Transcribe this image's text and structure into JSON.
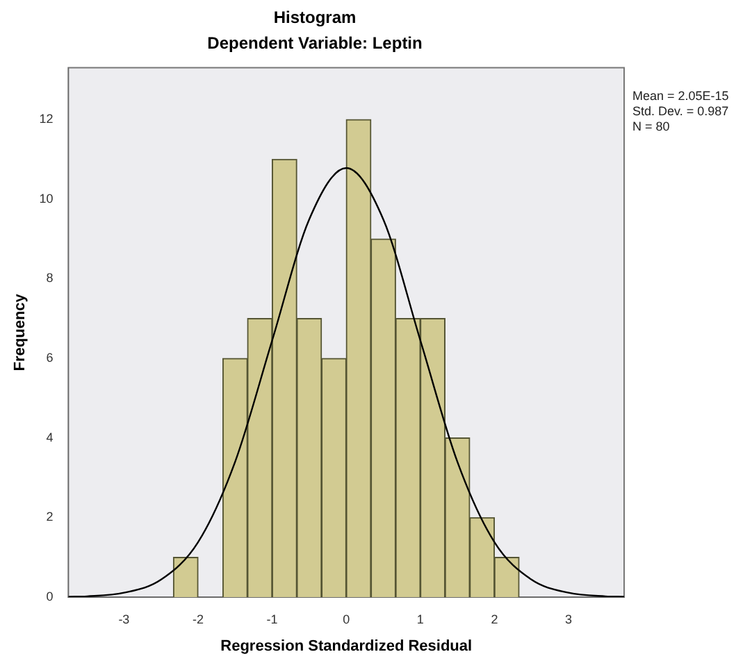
{
  "chart_data": {
    "type": "histogram",
    "title": "Histogram",
    "subtitle": "Dependent Variable: Leptin",
    "xlabel": "Regression Standardized Residual",
    "ylabel": "Frequency",
    "bins": [
      -2.333,
      -2,
      -1.667,
      -1.333,
      -1,
      -0.667,
      -0.333,
      0,
      0.333,
      0.667,
      1,
      1.333,
      1.667,
      2,
      2.333
    ],
    "values": [
      1,
      0,
      6,
      7,
      11,
      7,
      6,
      12,
      9,
      7,
      7,
      4,
      2,
      1
    ],
    "color": "#d2cb92",
    "series": [
      {
        "type": "line",
        "color": "#000000",
        "x": [
          -3.75,
          -3.5,
          -3,
          -2.5,
          -2,
          -1.5,
          -1,
          -0.5,
          0,
          0.5,
          1,
          1.5,
          2,
          2.5,
          3,
          3.5,
          3.75
        ],
        "values": [
          0.01,
          0.02,
          0.11,
          0.44,
          1.38,
          3.4,
          6.45,
          9.49,
          10.78,
          9.49,
          6.45,
          3.4,
          1.38,
          0.44,
          0.11,
          0.02,
          0.01
        ]
      }
    ],
    "xlim": [
      -3.75,
      3.75
    ],
    "xticks": [
      -3,
      -2,
      -1,
      0,
      1,
      2,
      3
    ],
    "ylim": [
      0,
      13.3
    ],
    "yticks": [
      0,
      2,
      4,
      6,
      8,
      10,
      12
    ],
    "annotations": [
      "Mean = 2.05E-15",
      "Std. Dev. = 0.987",
      "N = 80"
    ],
    "grid": false,
    "legend": false
  }
}
